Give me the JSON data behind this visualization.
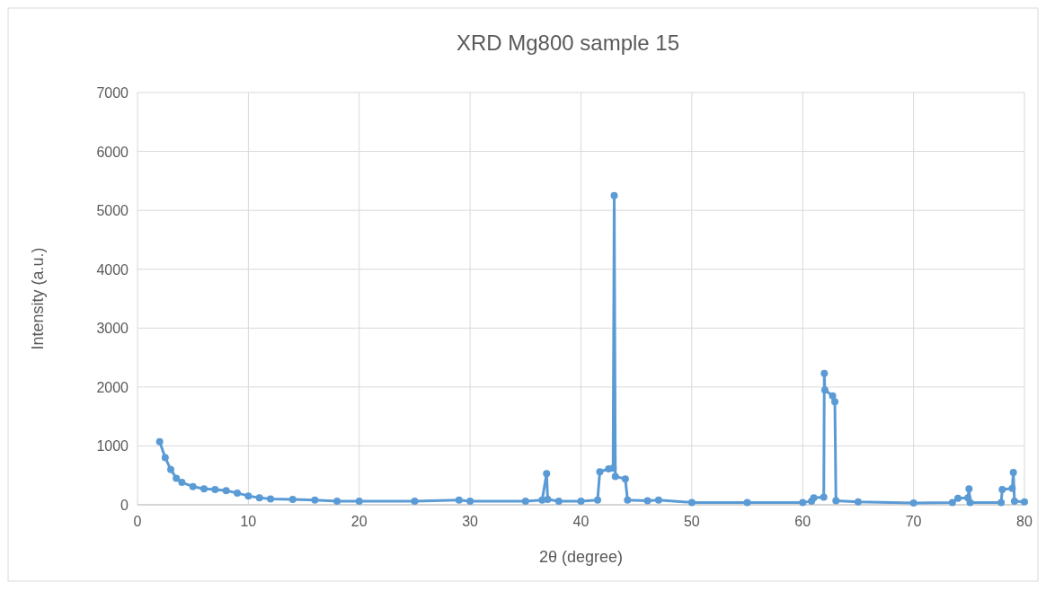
{
  "chart_data": {
    "type": "line",
    "title": "XRD Mg800 sample 15",
    "xlabel": "2θ (degree)",
    "ylabel": "Intensity (a.u.)",
    "x": [
      2,
      2.5,
      3,
      3.5,
      4,
      5,
      6,
      7,
      8,
      9,
      10,
      11,
      12,
      14,
      16,
      18,
      20,
      25,
      29,
      30,
      35,
      36.5,
      36.9,
      37,
      38,
      40,
      41.5,
      41.7,
      42.5,
      42.9,
      43,
      43.1,
      44,
      44.2,
      46,
      47,
      50,
      55,
      60,
      60.8,
      61,
      61.9,
      61.95,
      62,
      62.7,
      62.9,
      63,
      65,
      70,
      73.5,
      74,
      74.9,
      75,
      75.1,
      77.9,
      78,
      78.9,
      79,
      79.1,
      80
    ],
    "series": [
      {
        "color": "#5b9bd5",
        "values": [
          1070,
          800,
          600,
          450,
          380,
          310,
          270,
          260,
          240,
          200,
          150,
          120,
          100,
          90,
          80,
          60,
          60,
          60,
          80,
          60,
          60,
          80,
          530,
          90,
          60,
          60,
          80,
          560,
          610,
          620,
          5250,
          480,
          440,
          80,
          70,
          80,
          40,
          40,
          40,
          60,
          120,
          130,
          2230,
          1950,
          1850,
          1750,
          70,
          50,
          30,
          40,
          110,
          120,
          270,
          40,
          40,
          260,
          280,
          550,
          60,
          50
        ]
      }
    ],
    "xlim": [
      0,
      80
    ],
    "xticks": [
      0,
      10,
      20,
      30,
      40,
      50,
      60,
      70,
      80
    ],
    "ylim": [
      0,
      7000
    ],
    "yticks": [
      0,
      1000,
      2000,
      3000,
      4000,
      5000,
      6000,
      7000
    ],
    "grid": true,
    "marker": "circle",
    "line_style": "solid"
  }
}
